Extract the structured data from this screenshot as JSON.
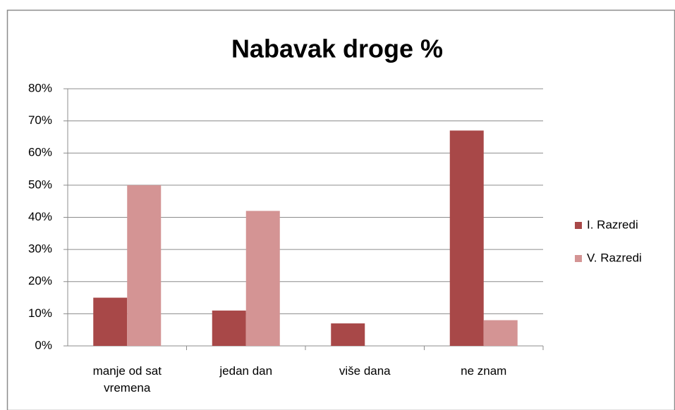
{
  "chart_data": {
    "type": "bar",
    "title": "Nabavak droge %",
    "categories": [
      "manje od sat vremena",
      "jedan dan",
      "više dana",
      "ne znam"
    ],
    "series": [
      {
        "name": "I. Razredi",
        "color": "#a84848",
        "values": [
          15,
          11,
          7,
          67
        ]
      },
      {
        "name": "V. Razredi",
        "color": "#d49494",
        "values": [
          50,
          42,
          0,
          8
        ]
      }
    ],
    "ylim": [
      0,
      80
    ],
    "yticks": [
      {
        "value": 0,
        "label": "0%"
      },
      {
        "value": 10,
        "label": "10%"
      },
      {
        "value": 20,
        "label": "20%"
      },
      {
        "value": 30,
        "label": "30%"
      },
      {
        "value": 40,
        "label": "40%"
      },
      {
        "value": 50,
        "label": "50%"
      },
      {
        "value": 60,
        "label": "60%"
      },
      {
        "value": 70,
        "label": "70%"
      },
      {
        "value": 80,
        "label": "80%"
      }
    ],
    "grid": true,
    "legend": "right"
  }
}
